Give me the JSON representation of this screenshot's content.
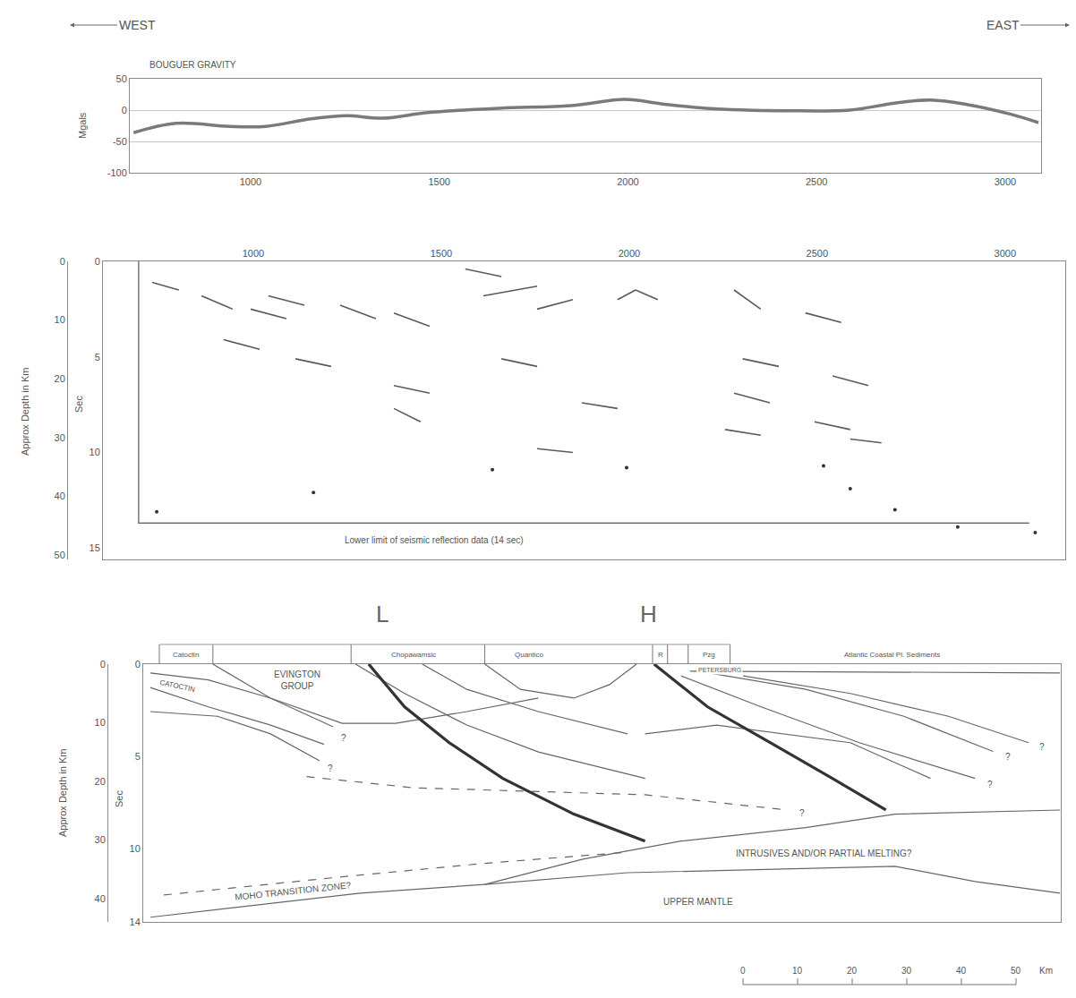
{
  "chart_data": [
    {
      "type": "line",
      "title": "BOUGUER GRAVITY",
      "y_label": "Mgals",
      "annotations": [
        {
          "text": "WEST"
        },
        {
          "text": "EAST"
        }
      ],
      "x": [
        690,
        802,
        945,
        1040,
        1160,
        1255,
        1350,
        1469,
        1660,
        1850,
        1993,
        2088,
        2207,
        2421,
        2588,
        2707,
        2802,
        2898,
        3017,
        3088
      ],
      "values": [
        -36,
        -21,
        -26,
        -26,
        -14,
        -9,
        -13,
        -4,
        3,
        7,
        17,
        10,
        3,
        -1,
        0,
        11,
        16,
        9,
        -7,
        -20
      ],
      "color": "#7a7a7a",
      "xlim": [
        680,
        3095
      ],
      "xticks": [
        1000,
        1500,
        2000,
        2500,
        3000
      ],
      "ylim": [
        -100,
        50
      ],
      "yticks": [
        50,
        0,
        -50,
        -100
      ],
      "grid": true
    },
    {
      "type": "seismic_section",
      "y_label": "Sec",
      "y2_label": "Approx Depth in Km",
      "xlim": [
        600,
        3160
      ],
      "xticks": [
        1000,
        1500,
        2000,
        2500,
        3000
      ],
      "ylim": [
        15.6,
        0
      ],
      "yticks": [
        0,
        5,
        10,
        15
      ],
      "y2lim": [
        50.8,
        0
      ],
      "y2ticks": [
        0,
        10,
        20,
        30,
        40,
        50
      ],
      "series": [
        {
          "type": "segments",
          "color": "#5a5a5a",
          "values": [
            [
              731,
              1.1,
              802,
              1.5
            ],
            [
              862,
              1.8,
              945,
              2.5
            ],
            [
              993,
              2.5,
              1088,
              3.0
            ],
            [
              1040,
              1.8,
              1136,
              2.3
            ],
            [
              1231,
              2.3,
              1326,
              3.0
            ],
            [
              1374,
              2.7,
              1469,
              3.4
            ],
            [
              1564,
              0.4,
              1660,
              0.8
            ],
            [
              1612,
              1.8,
              1755,
              1.3
            ],
            [
              1755,
              2.5,
              1850,
              2.0
            ],
            [
              1969,
              2.0,
              2017,
              1.5
            ],
            [
              2017,
              1.5,
              2076,
              2.0
            ],
            [
              2279,
              1.5,
              2350,
              2.5
            ],
            [
              2302,
              5.1,
              2398,
              5.5
            ],
            [
              2469,
              2.7,
              2564,
              3.2
            ],
            [
              2541,
              6.0,
              2636,
              6.5
            ],
            [
              2588,
              9.3,
              2671,
              9.5
            ],
            [
              1660,
              5.1,
              1755,
              5.5
            ],
            [
              1874,
              7.4,
              1969,
              7.7
            ],
            [
              1374,
              6.5,
              1469,
              6.9
            ],
            [
              1112,
              5.1,
              1207,
              5.5
            ],
            [
              921,
              4.1,
              1017,
              4.6
            ],
            [
              2255,
              8.8,
              2350,
              9.1
            ],
            [
              1755,
              9.8,
              1850,
              10.0
            ],
            [
              1374,
              7.7,
              1445,
              8.4
            ],
            [
              2279,
              6.9,
              2374,
              7.4
            ],
            [
              2493,
              8.4,
              2588,
              8.8
            ]
          ]
        },
        {
          "type": "scatter",
          "marker": "dot",
          "color": "#333333",
          "x": [
            743,
            1160,
            1636,
            1993,
            2517,
            2588,
            2707,
            2874,
            3080
          ],
          "values": [
            13.1,
            12.1,
            10.9,
            10.8,
            10.7,
            11.9,
            13.0,
            13.9,
            14.2
          ]
        },
        {
          "type": "line",
          "color": "#555555",
          "x": [
            695,
            695,
            3064
          ],
          "values": [
            0,
            13.7,
            13.7
          ]
        }
      ],
      "annotations": [
        {
          "text": "Lower limit of seismic reflection data (14 sec)",
          "x": 1481,
          "y": 14.6
        }
      ]
    },
    {
      "type": "cross_section",
      "y_label": "Approx Depth in Km",
      "y2_label": "Sec",
      "xlim": [
        700,
        3150
      ],
      "tick_labels": "y",
      "ylim": [
        44,
        0
      ],
      "yticks": [
        0,
        10,
        20,
        30,
        40
      ],
      "y2lim": [
        14,
        0
      ],
      "y2ticks": [
        0,
        5,
        10,
        14
      ],
      "color": "#666666",
      "series": [
        {
          "line_style": "solid",
          "x": [
            719,
            874,
            1040,
            1207
          ],
          "values": [
            1.5,
            2.7,
            5.8,
            10.7
          ]
        },
        {
          "line_style": "solid",
          "x": [
            719,
            874,
            1040,
            1183
          ],
          "values": [
            4.0,
            7.3,
            10.4,
            13.7
          ]
        },
        {
          "line_style": "solid",
          "x": [
            719,
            898,
            1040,
            1171
          ],
          "values": [
            8.1,
            8.9,
            11.9,
            16.5
          ]
        },
        {
          "line_style": "solid",
          "x": [
            886,
            1040,
            1231,
            1374,
            1564,
            1755
          ],
          "values": [
            0,
            5.8,
            10.1,
            10.1,
            8.1,
            5.8
          ]
        },
        {
          "line_style": "dash",
          "x": [
            1136,
            1421,
            2040,
            2421
          ],
          "values": [
            19.2,
            21.1,
            22.3,
            24.9
          ]
        },
        {
          "line_style": "solid",
          "x": [
            1267,
            1398,
            1564,
            1755,
            2040
          ],
          "values": [
            0,
            5.0,
            10.4,
            15.0,
            19.5
          ]
        },
        {
          "line_style": "solid",
          "x": [
            1445,
            1564,
            1755,
            1993
          ],
          "values": [
            0,
            4.3,
            8.1,
            11.9
          ]
        },
        {
          "line_style": "solid",
          "x": [
            1612,
            1707,
            1850,
            1945,
            2017
          ],
          "values": [
            0,
            4.3,
            5.8,
            3.5,
            0
          ]
        },
        {
          "line_style": "solid",
          "x": [
            2136,
            2350,
            2612,
            2921
          ],
          "values": [
            2.0,
            7.3,
            13.4,
            19.5
          ]
        },
        {
          "line_style": "solid",
          "x": [
            2183,
            2469,
            2731,
            2969
          ],
          "values": [
            1.2,
            4.3,
            8.9,
            14.9
          ]
        },
        {
          "line_style": "solid",
          "x": [
            2302,
            2588,
            2850,
            3064
          ],
          "values": [
            2.0,
            5.0,
            8.9,
            13.4
          ]
        },
        {
          "line_style": "solid",
          "x": [
            2040,
            2231,
            2588,
            2802
          ],
          "values": [
            11.9,
            10.4,
            13.4,
            19.5
          ]
        },
        {
          "line_style": "solid",
          "x": [
            2160,
            3148
          ],
          "values": [
            1.2,
            1.5
          ]
        },
        {
          "line_style": "dash",
          "x": [
            755,
            1231,
            1612,
            1993
          ],
          "values": [
            39.4,
            36.3,
            34.0,
            32.1
          ]
        },
        {
          "line_style": "solid",
          "x": [
            719,
            1279,
            1612,
            1993,
            2707,
            2921,
            3148
          ],
          "values": [
            43.2,
            39.1,
            37.6,
            35.6,
            34.5,
            37.1,
            39.1
          ]
        },
        {
          "line_style": "solid",
          "x": [
            1612,
            1874,
            2136,
            2469,
            2707,
            3148
          ],
          "values": [
            37.6,
            33.3,
            30.2,
            27.9,
            25.6,
            24.9
          ]
        },
        {
          "line_style": "bold",
          "color": "#333333",
          "x": [
            1302,
            1398,
            1517,
            1660,
            1850,
            2040
          ],
          "values": [
            0,
            7.3,
            13.4,
            19.5,
            25.6,
            30.2
          ]
        },
        {
          "line_style": "bold",
          "color": "#333333",
          "x": [
            2064,
            2207,
            2374,
            2540,
            2683
          ],
          "values": [
            0,
            7.3,
            13.4,
            19.5,
            24.9
          ]
        }
      ],
      "section_marks": [
        {
          "text": "L",
          "x": 1338
        },
        {
          "text": "H",
          "x": 2050
        }
      ],
      "units": [
        {
          "text": "Catoctin",
          "x": 814
        },
        {
          "text": "Chopawamsic",
          "x": 1421
        },
        {
          "text": "Quantico",
          "x": 1731
        },
        {
          "text": "R",
          "x": 2081
        },
        {
          "text": "Pzg",
          "x": 2211
        },
        {
          "text": "Atlantic Coastal Pl. Sediments",
          "x": 2700
        }
      ],
      "unit_bounds": [
        743,
        886,
        1255,
        1612,
        2060,
        2100,
        2155,
        2267
      ],
      "annotations": [
        {
          "text": "EVINGTON GROUP",
          "x": 1110,
          "y": 2.8
        },
        {
          "text": "CATOCTIN",
          "x": 790,
          "y": 3.8
        },
        {
          "text": "PETERSBURG",
          "x": 2240,
          "y": 1.0
        },
        {
          "text": "INTRUSIVES AND/OR PARTIAL MELTING?",
          "x": 2517,
          "y": 32.3
        },
        {
          "text": "MOHO TRANSITION ZONE?",
          "x": 1100,
          "y": 38.8
        },
        {
          "text": "UPPER MANTLE",
          "x": 2183,
          "y": 40.5
        },
        {
          "text": "?",
          "x": 1235,
          "y": 12.6
        },
        {
          "text": "?",
          "x": 1200,
          "y": 17.8
        },
        {
          "text": "?",
          "x": 2960,
          "y": 20.5
        },
        {
          "text": "?",
          "x": 3010,
          "y": 15.8
        },
        {
          "text": "?",
          "x": 3100,
          "y": 14.2
        },
        {
          "text": "?",
          "x": 2460,
          "y": 25.5
        }
      ],
      "scale_bar": {
        "ticks": [
          0,
          10,
          20,
          30,
          40,
          50
        ],
        "unit": "Km"
      }
    }
  ]
}
